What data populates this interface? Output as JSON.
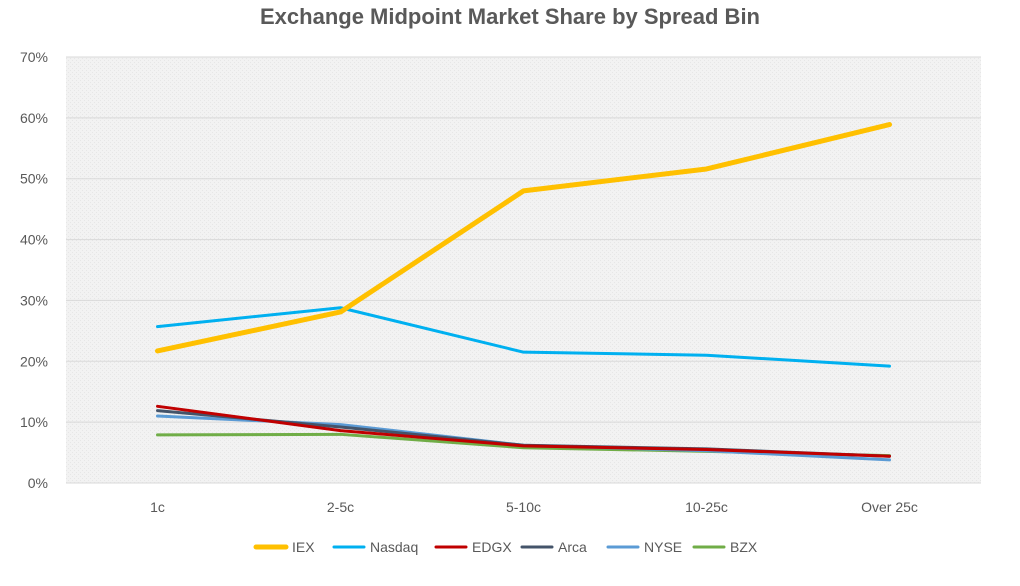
{
  "chart_data": {
    "type": "line",
    "title": "Exchange Midpoint Market Share by Spread Bin",
    "xlabel": "",
    "ylabel": "",
    "categories": [
      "1c",
      "2-5c",
      "5-10c",
      "10-25c",
      "Over 25c"
    ],
    "ylim": [
      0,
      0.7
    ],
    "yticks": [
      0,
      0.1,
      0.2,
      0.3,
      0.4,
      0.5,
      0.6,
      0.7
    ],
    "ytick_labels": [
      "0%",
      "10%",
      "20%",
      "30%",
      "40%",
      "50%",
      "60%",
      "70%"
    ],
    "grid": true,
    "legend_position": "bottom",
    "series": [
      {
        "name": "IEX",
        "color": "#FFC000",
        "values": [
          0.217,
          0.281,
          0.48,
          0.516,
          0.589
        ]
      },
      {
        "name": "Nasdaq",
        "color": "#00B0F0",
        "values": [
          0.257,
          0.288,
          0.215,
          0.21,
          0.192
        ]
      },
      {
        "name": "EDGX",
        "color": "#C00000",
        "values": [
          0.126,
          0.086,
          0.061,
          0.055,
          0.044
        ]
      },
      {
        "name": "Arca",
        "color": "#44546A",
        "values": [
          0.119,
          0.092,
          0.062,
          0.056,
          0.044
        ]
      },
      {
        "name": "NYSE",
        "color": "#5B9BD5",
        "values": [
          0.11,
          0.096,
          0.062,
          0.053,
          0.038
        ]
      },
      {
        "name": "BZX",
        "color": "#70AD47",
        "values": [
          0.079,
          0.08,
          0.058,
          0.052,
          0.045
        ]
      }
    ]
  }
}
